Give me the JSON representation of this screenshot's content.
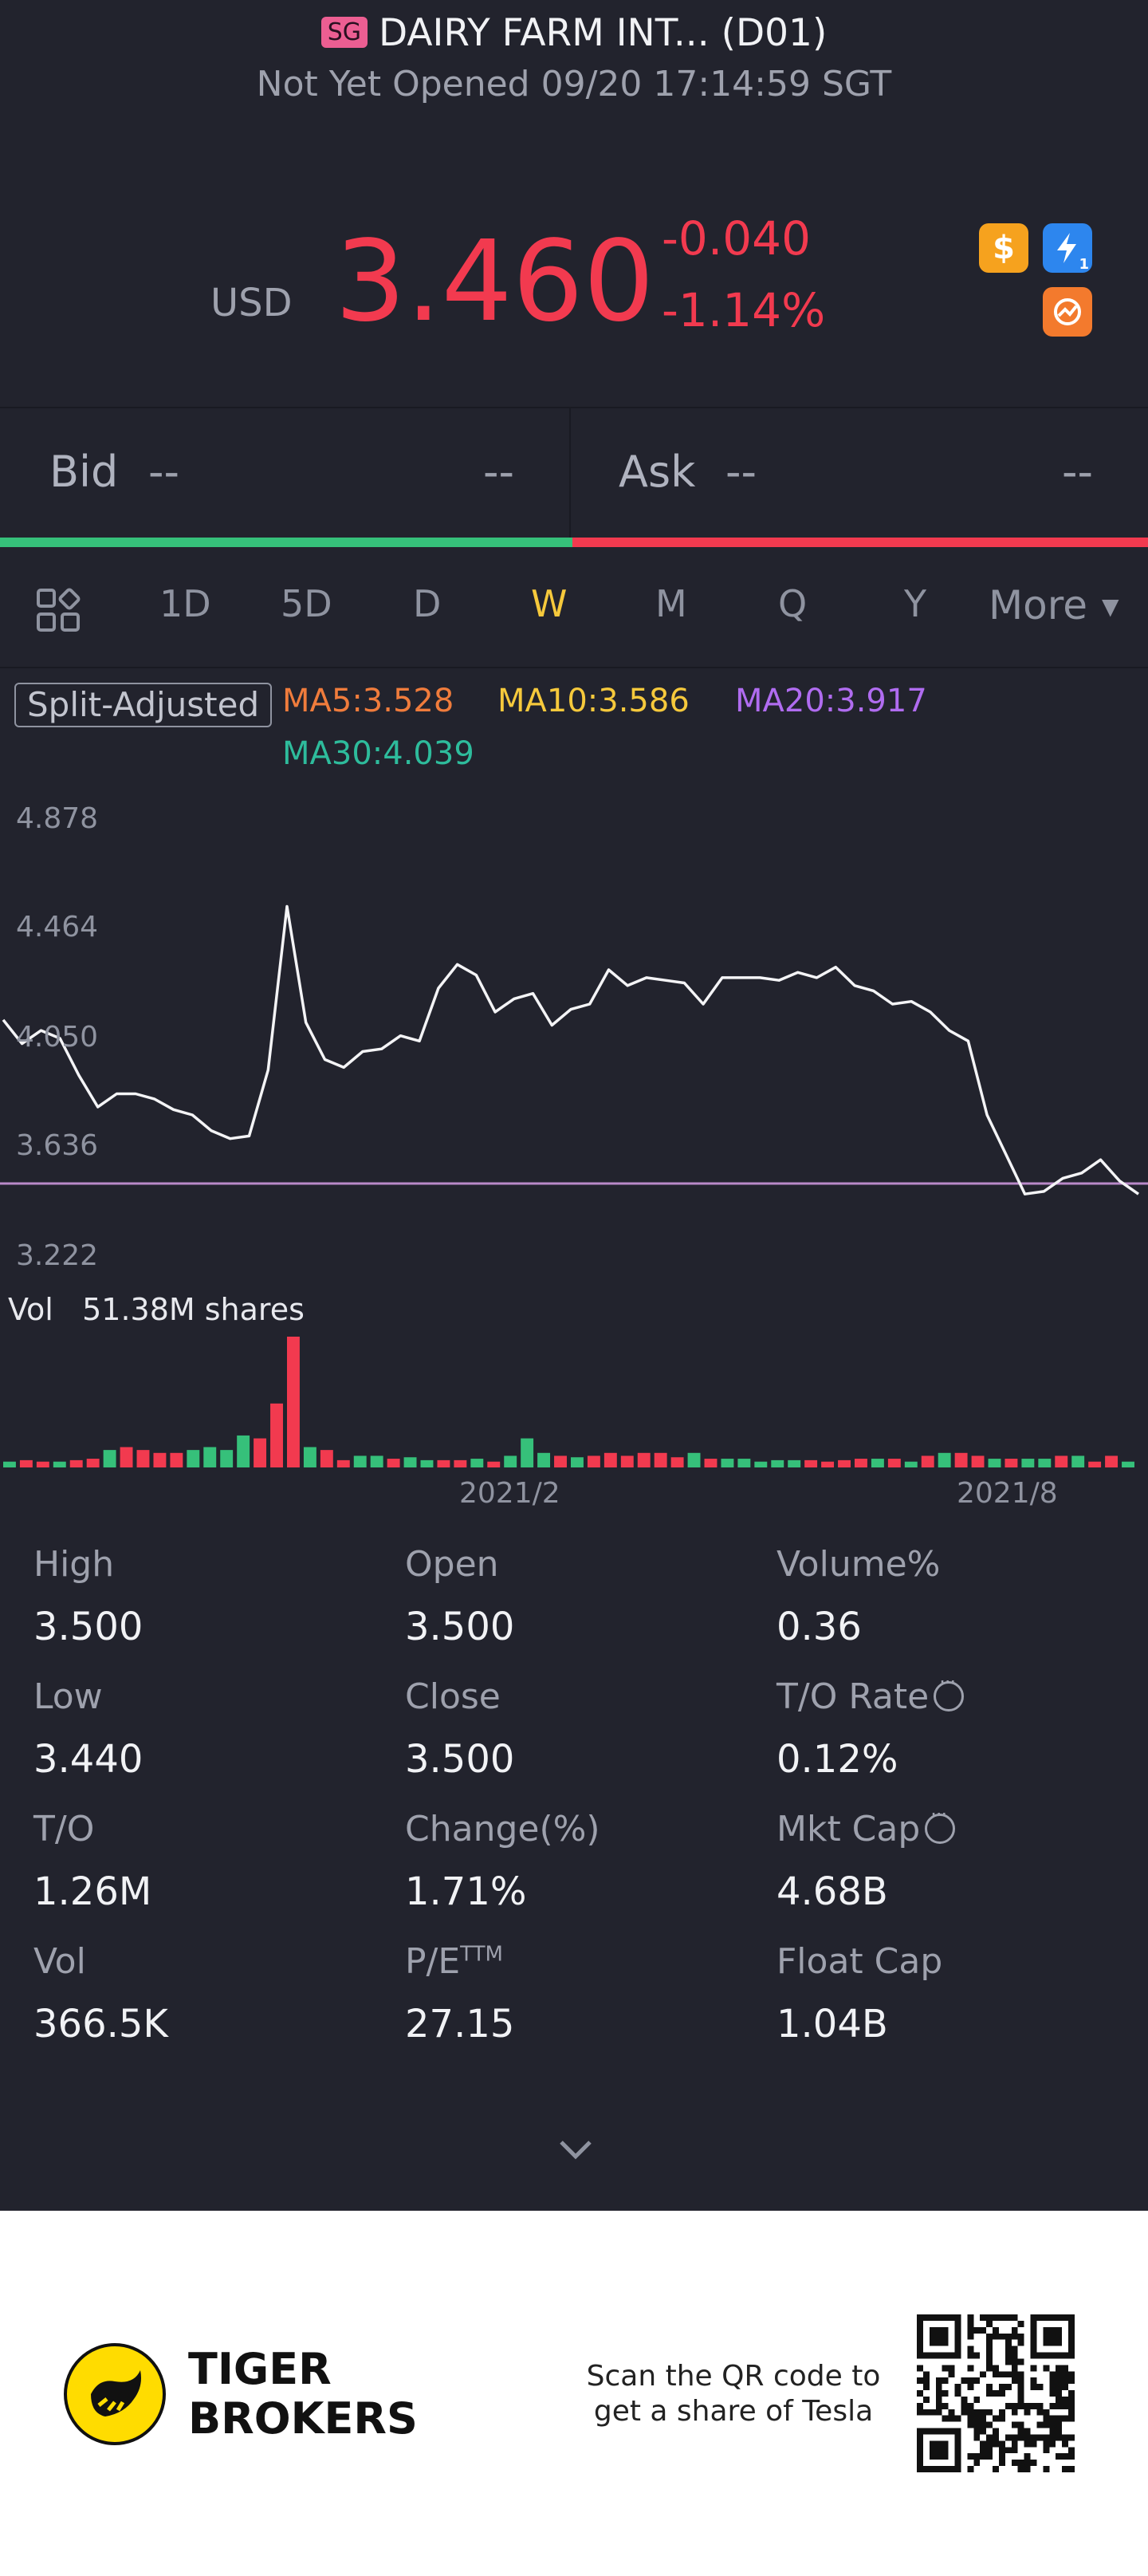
{
  "header": {
    "market_badge": "SG",
    "title": "DAIRY FARM INT... (D01)",
    "status": "Not Yet Opened 09/20 17:14:59 SGT"
  },
  "quote": {
    "currency": "USD",
    "price": "3.460",
    "change": "-0.040",
    "change_pct": "-1.14%",
    "price_color": "#f23a4f",
    "badges": [
      "dollar-icon",
      "flash-icon",
      "sync-icon"
    ],
    "badge_flash_sub": "1"
  },
  "orderbook": {
    "bid_label": "Bid",
    "bid_price": "--",
    "bid_size": "--",
    "ask_label": "Ask",
    "ask_price": "--",
    "ask_size": "--"
  },
  "periods": {
    "items": [
      "1D",
      "5D",
      "D",
      "W",
      "M",
      "Q",
      "Y"
    ],
    "active": "W",
    "more_label": "More",
    "active_color": "#f6c93c"
  },
  "indicators": {
    "split_label": "Split-Adjusted",
    "ma5": "MA5:3.528",
    "ma10": "MA10:3.586",
    "ma20": "MA20:3.917",
    "ma30": "MA30:4.039",
    "colors": {
      "ma5": "#f07c3c",
      "ma10": "#f6c93c",
      "ma20": "#b06cf0",
      "ma30": "#2ebc9c"
    }
  },
  "chart_data": {
    "type": "line",
    "y_ticks": [
      "4.878",
      "4.464",
      "4.050",
      "3.636",
      "3.222"
    ],
    "ylim": [
      3.222,
      4.878
    ],
    "x_tick_labels": [
      "2021/2",
      "2021/8"
    ],
    "reference_line": 3.5,
    "price_series": [
      4.12,
      4.03,
      4.08,
      4.05,
      3.91,
      3.79,
      3.84,
      3.84,
      3.82,
      3.78,
      3.76,
      3.7,
      3.67,
      3.68,
      3.93,
      4.55,
      4.11,
      3.97,
      3.94,
      4.0,
      4.01,
      4.06,
      4.04,
      4.24,
      4.33,
      4.29,
      4.15,
      4.2,
      4.22,
      4.1,
      4.16,
      4.18,
      4.31,
      4.25,
      4.28,
      4.27,
      4.26,
      4.18,
      4.28,
      4.28,
      4.28,
      4.27,
      4.3,
      4.28,
      4.32,
      4.25,
      4.23,
      4.18,
      4.19,
      4.15,
      4.08,
      4.04,
      3.76,
      3.61,
      3.46,
      3.47,
      3.52,
      3.54,
      3.59,
      3.51,
      3.46
    ],
    "volume_label": "Vol",
    "volume_value": "51.38M shares",
    "volume_bars": [
      4,
      5,
      4,
      4,
      5,
      6,
      12,
      14,
      12,
      10,
      10,
      12,
      14,
      12,
      22,
      20,
      44,
      90,
      14,
      12,
      5,
      8,
      8,
      6,
      7,
      5,
      5,
      5,
      6,
      4,
      8,
      20,
      10,
      8,
      7,
      8,
      10,
      8,
      10,
      10,
      7,
      10,
      6,
      6,
      6,
      4,
      5,
      5,
      5,
      4,
      5,
      6,
      6,
      6,
      4,
      8,
      10,
      10,
      8,
      6,
      6,
      6,
      6,
      8,
      8,
      4,
      8,
      4
    ],
    "volume_colors": [
      "g",
      "r",
      "r",
      "g",
      "r",
      "r",
      "g",
      "r",
      "r",
      "r",
      "r",
      "g",
      "g",
      "g",
      "g",
      "r",
      "r",
      "r",
      "g",
      "r",
      "r",
      "g",
      "g",
      "r",
      "g",
      "g",
      "r",
      "r",
      "g",
      "r",
      "g",
      "g",
      "g",
      "r",
      "g",
      "r",
      "r",
      "r",
      "r",
      "r",
      "r",
      "g",
      "r",
      "g",
      "g",
      "g",
      "g",
      "g",
      "r",
      "r",
      "r",
      "r",
      "g",
      "r",
      "g",
      "r",
      "g",
      "r",
      "r",
      "g",
      "r",
      "g",
      "g",
      "r",
      "g",
      "r",
      "r",
      "g"
    ]
  },
  "stats": [
    {
      "label": "High",
      "value": "3.500"
    },
    {
      "label": "Open",
      "value": "3.500"
    },
    {
      "label": "Volume%",
      "value": "0.36"
    },
    {
      "label": "Low",
      "value": "3.440"
    },
    {
      "label": "Close",
      "value": "3.500"
    },
    {
      "label": "T/O Rate",
      "value": "0.12%"
    },
    {
      "label": "T/O",
      "value": "1.26M"
    },
    {
      "label": "Change(%)",
      "value": "1.71%"
    },
    {
      "label": "Mkt Cap",
      "value": "4.68B"
    },
    {
      "label": "Vol",
      "value": "366.5K"
    },
    {
      "label": "P/E",
      "value": "27.15",
      "sup": "TTM"
    },
    {
      "label": "Float Cap",
      "value": "1.04B"
    }
  ],
  "footer": {
    "brand_line1": "TIGER",
    "brand_line2": "BROKERS",
    "scan_line1": "Scan the QR code to",
    "scan_line2": "get a share of Tesla",
    "brand_color": "#ffdc00"
  }
}
